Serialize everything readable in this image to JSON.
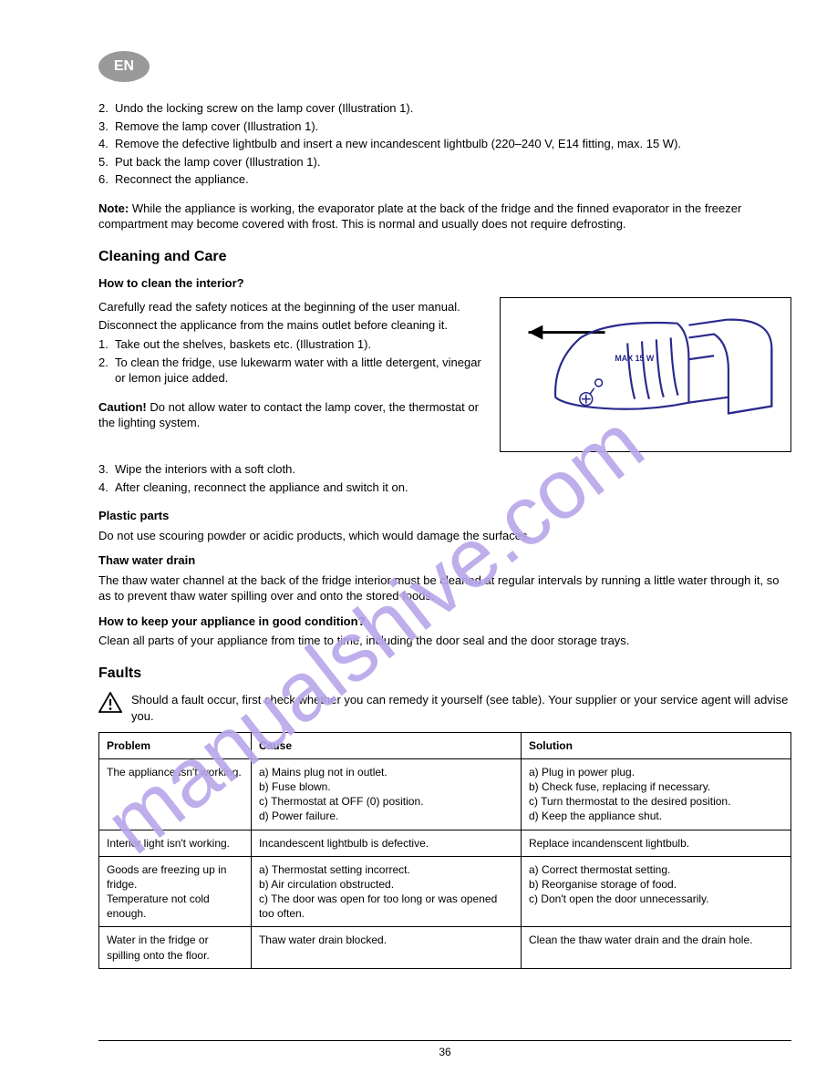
{
  "lang_badge": "EN",
  "intro": {
    "steps": [
      "Undo the locking screw on the lamp cover (Illustration 1).",
      "Remove the lamp cover (Illustration 1).",
      "Remove the defective lightbulb and insert a new incandescent lightbulb (220–240 V, E14 fitting, max. 15 W).",
      "Put back the lamp cover (Illustration 1).",
      "Reconnect the appliance."
    ],
    "note_label": "Note:",
    "note_text": "While the appliance is working, the evaporator plate at the back of the fridge and the finned evaporator in the freezer compartment may become covered with frost. This is normal and usually does not require defrosting."
  },
  "s_clean": {
    "title": "Cleaning and Care",
    "sub1": "How to clean the interior?",
    "p1": "Carefully read the safety notices at the beginning of the user manual.",
    "p2": "Disconnect the applicance from the mains outlet before cleaning it.",
    "clean_steps": [
      "Take out the shelves, baskets etc. (Illustration 1).",
      "To clean the fridge, use lukewarm water with a little detergent, vinegar or lemon juice added."
    ],
    "caution_label": "Caution!",
    "caution_text": "Do not allow water to contact the lamp cover, the thermostat or the lighting system.",
    "after_steps": [
      "Wipe the interiors with a soft cloth.",
      "After cleaning, reconnect the appliance and switch it on."
    ],
    "sub2": "Plastic parts",
    "plastic_text": "Do not use scouring powder or acidic products, which would damage the surfaces.",
    "sub3": "Thaw water drain",
    "drain_text": "The thaw water channel at the back of the fridge interior must be cleaned at regular intervals by running a little water through it, so as to prevent thaw water spilling over and onto the stored foods.",
    "sub4": "How to keep your appliance in good condition?",
    "cond_text": "Clean all parts of your appliance from time to time, including the door seal and the door storage trays."
  },
  "s_faults": {
    "title": "Faults",
    "warn_text": "Should a fault occur, first check whether you can remedy it yourself (see table). Your supplier or your service agent will advise you.",
    "columns": [
      "Problem",
      "Cause",
      "Solution"
    ],
    "rows": [
      {
        "problem": [
          "The appliance isn't working."
        ],
        "cause": [
          "a) Mains plug not in outlet.",
          "b) Fuse blown.",
          "c) Thermostat at OFF (0) position.",
          "d) Power failure."
        ],
        "solution": [
          "a) Plug in power plug.",
          "b) Check fuse, replacing if necessary.",
          "c) Turn thermostat to the desired position.",
          "d) Keep the appliance shut."
        ]
      },
      {
        "problem": [
          "Interior light isn't working."
        ],
        "cause": [
          "Incandescent lightbulb is defective."
        ],
        "solution": [
          "Replace incandenscent lightbulb."
        ]
      },
      {
        "problem": [
          "Goods are freezing up in fridge.",
          "Temperature not cold enough."
        ],
        "cause": [
          "a) Thermostat setting incorrect.",
          "b) Air circulation obstructed.",
          "c) The door was open for too long or was opened too often."
        ],
        "solution": [
          "a) Correct thermostat setting.",
          "b) Reorganise storage of food.",
          "c) Don't open the door unnecessarily."
        ]
      },
      {
        "problem": [
          "Water in the fridge or spilling onto the floor."
        ],
        "cause": [
          "Thaw water drain blocked."
        ],
        "solution": [
          "Clean the thaw water drain and the drain hole."
        ]
      }
    ]
  },
  "figure_label": "MAX 15 W",
  "footer": "36",
  "watermark_text": "manualshive.com",
  "colors": {
    "watermark": "#b9a6ea",
    "figure_stroke": "#2a2a8f"
  }
}
